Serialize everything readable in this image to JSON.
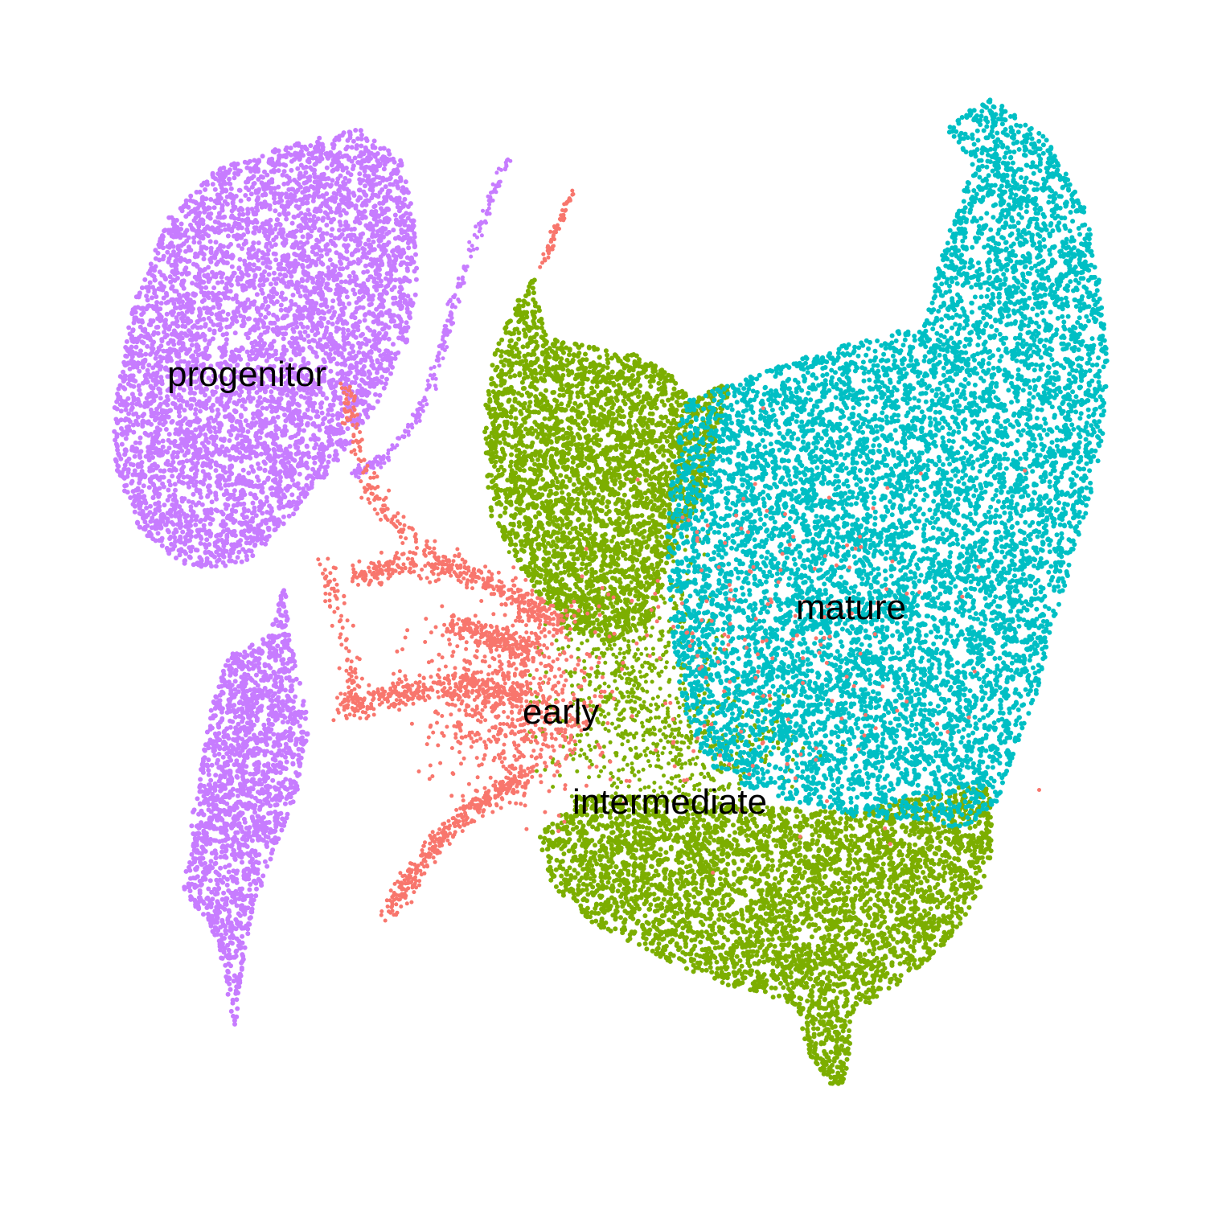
{
  "chart_data": {
    "type": "scatter",
    "title": "",
    "xlabel": "",
    "ylabel": "",
    "axes_visible": false,
    "grid": false,
    "legend": "none",
    "clusters": [
      {
        "name": "early",
        "color": "#F8766D",
        "label": "early"
      },
      {
        "name": "intermediate",
        "color": "#7CAE00",
        "label": "intermediate"
      },
      {
        "name": "mature",
        "color": "#00BFC4",
        "label": "mature"
      },
      {
        "name": "progenitor",
        "color": "#C77CFF",
        "label": "progenitor"
      }
    ]
  }
}
